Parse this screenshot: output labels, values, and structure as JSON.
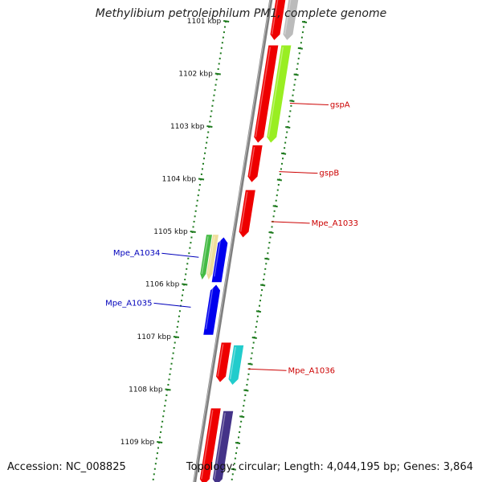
{
  "title": "Methylibium petroleiphilum PM1, complete genome",
  "accession": "Accession: NC_008825",
  "summary": "Topology: circular; Length: 4,044,195 bp; Genes: 3,864",
  "colors": {
    "backbone": "#7f7f7f",
    "ticks": "#1e7a1e",
    "forward_label": "#cc0000",
    "reverse_label": "#0000bb"
  },
  "kbp_ticks": [
    {
      "label": "1101 kbp",
      "pos": 1101
    },
    {
      "label": "1102 kbp",
      "pos": 1102
    },
    {
      "label": "1103 kbp",
      "pos": 1103
    },
    {
      "label": "1104 kbp",
      "pos": 1104
    },
    {
      "label": "1105 kbp",
      "pos": 1105
    },
    {
      "label": "1106 kbp",
      "pos": 1106
    },
    {
      "label": "1107 kbp",
      "pos": 1107
    },
    {
      "label": "1108 kbp",
      "pos": 1108
    },
    {
      "label": "1109 kbp",
      "pos": 1109
    }
  ],
  "genes": [
    {
      "strand": "forward",
      "lane": "inner",
      "start": 1100.55,
      "end": 1101.35,
      "color": "#ee0000",
      "dir": "down"
    },
    {
      "strand": "forward",
      "lane": "outer",
      "start": 1100.55,
      "end": 1101.35,
      "color": "#bbbbbb",
      "dir": "down"
    },
    {
      "strand": "forward",
      "lane": "inner",
      "start": 1101.45,
      "end": 1103.3,
      "color": "#ee0000",
      "dir": "down"
    },
    {
      "strand": "forward",
      "lane": "outer",
      "start": 1101.45,
      "end": 1103.3,
      "color": "#99ee22",
      "dir": "down"
    },
    {
      "strand": "forward",
      "lane": "inner",
      "start": 1103.35,
      "end": 1104.05,
      "color": "#ee0000",
      "dir": "down"
    },
    {
      "strand": "forward",
      "lane": "inner",
      "start": 1104.2,
      "end": 1105.1,
      "color": "#ee0000",
      "dir": "down"
    },
    {
      "strand": "reverse",
      "lane": "outer",
      "start": 1105.05,
      "end": 1105.9,
      "color": "#44bb44",
      "dir": "down"
    },
    {
      "strand": "reverse",
      "lane": "mid",
      "start": 1105.05,
      "end": 1105.9,
      "color": "#eedd99",
      "dir": "down"
    },
    {
      "strand": "reverse",
      "lane": "inner",
      "start": 1105.1,
      "end": 1105.95,
      "color": "#0000ee",
      "dir": "up"
    },
    {
      "strand": "reverse",
      "lane": "inner",
      "start": 1106.0,
      "end": 1106.95,
      "color": "#0000ee",
      "dir": "up"
    },
    {
      "strand": "forward",
      "lane": "inner",
      "start": 1107.1,
      "end": 1107.85,
      "color": "#ee0000",
      "dir": "down"
    },
    {
      "strand": "forward",
      "lane": "outer",
      "start": 1107.15,
      "end": 1107.9,
      "color": "#22cccc",
      "dir": "down"
    },
    {
      "strand": "forward",
      "lane": "inner",
      "start": 1108.35,
      "end": 1109.8,
      "color": "#ee0000",
      "dir": "down"
    },
    {
      "strand": "forward",
      "lane": "outer",
      "start": 1108.4,
      "end": 1109.8,
      "color": "#443388",
      "dir": "down"
    }
  ],
  "labels": [
    {
      "text": "gspA",
      "side": "right",
      "anchor": 1102.55,
      "color": "#cc0000"
    },
    {
      "text": "gspB",
      "side": "right",
      "anchor": 1103.85,
      "color": "#cc0000"
    },
    {
      "text": "Mpe_A1033",
      "side": "right",
      "anchor": 1104.8,
      "color": "#cc0000"
    },
    {
      "text": "Mpe_A1034",
      "side": "left",
      "anchor": 1105.4,
      "color": "#0000bb"
    },
    {
      "text": "Mpe_A1035",
      "side": "left",
      "anchor": 1106.35,
      "color": "#0000bb"
    },
    {
      "text": "Mpe_A1036",
      "side": "right",
      "anchor": 1107.6,
      "color": "#cc0000"
    }
  ]
}
